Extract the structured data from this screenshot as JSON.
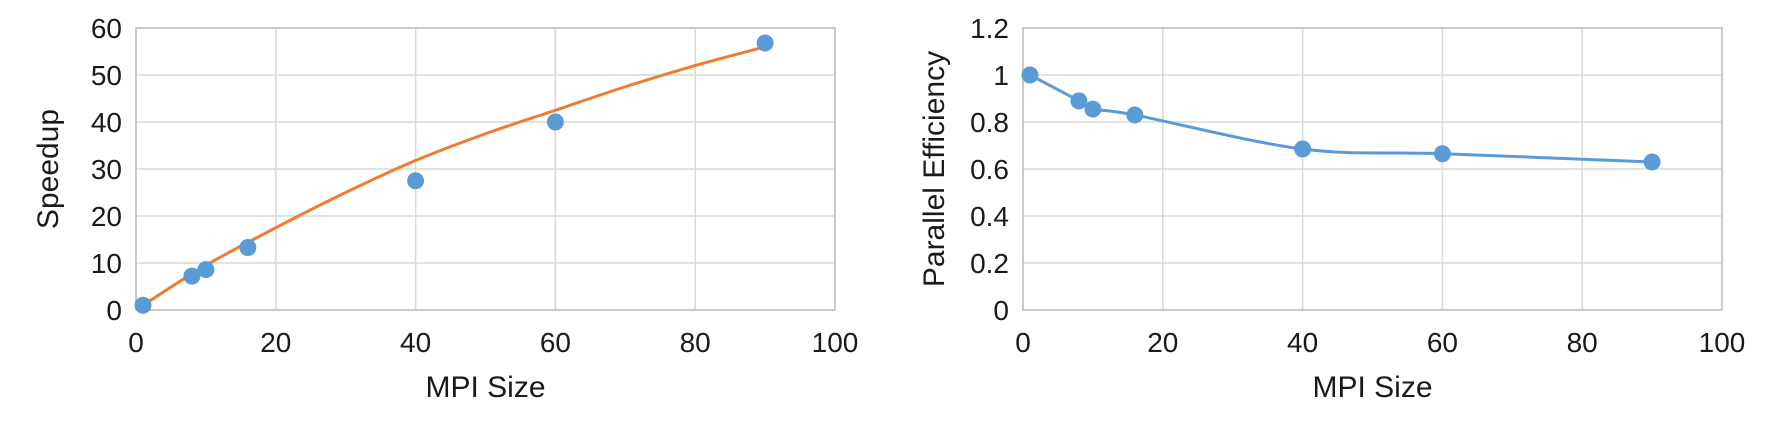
{
  "chart_data": [
    {
      "type": "scatter",
      "xlabel": "MPI Size",
      "ylabel": "Speedup",
      "xlim": [
        0,
        100
      ],
      "ylim": [
        0,
        60
      ],
      "xticks": [
        "0",
        "20",
        "40",
        "60",
        "80",
        "100"
      ],
      "yticks": [
        "0",
        "10",
        "20",
        "30",
        "40",
        "50",
        "60"
      ],
      "grid": true,
      "series": [
        {
          "kind": "markers",
          "color": "#5b9bd5",
          "x": [
            1,
            8,
            10,
            16,
            40,
            60,
            90
          ],
          "y": [
            1,
            7.2,
            8.6,
            13.3,
            27.5,
            40,
            56.8
          ]
        },
        {
          "kind": "trendline",
          "color": "#ed7d31",
          "x": [
            1,
            10,
            20,
            30,
            40,
            50,
            60,
            70,
            80,
            90
          ],
          "y": [
            1,
            9.5,
            17.5,
            25,
            31.8,
            37.5,
            42.5,
            47.5,
            52,
            56
          ]
        }
      ]
    },
    {
      "type": "line",
      "xlabel": "MPI Size",
      "ylabel": "Parallel Efficiency",
      "xlim": [
        0,
        100
      ],
      "ylim": [
        0,
        1.2
      ],
      "xticks": [
        "0",
        "20",
        "40",
        "60",
        "80",
        "100"
      ],
      "yticks": [
        "0",
        "0.2",
        "0.4",
        "0.6",
        "0.8",
        "1",
        "1.2"
      ],
      "grid": true,
      "series": [
        {
          "kind": "line-markers",
          "color": "#5b9bd5",
          "x": [
            1,
            8,
            10,
            16,
            40,
            60,
            90
          ],
          "y": [
            1.0,
            0.89,
            0.855,
            0.83,
            0.685,
            0.665,
            0.63
          ]
        }
      ]
    }
  ]
}
